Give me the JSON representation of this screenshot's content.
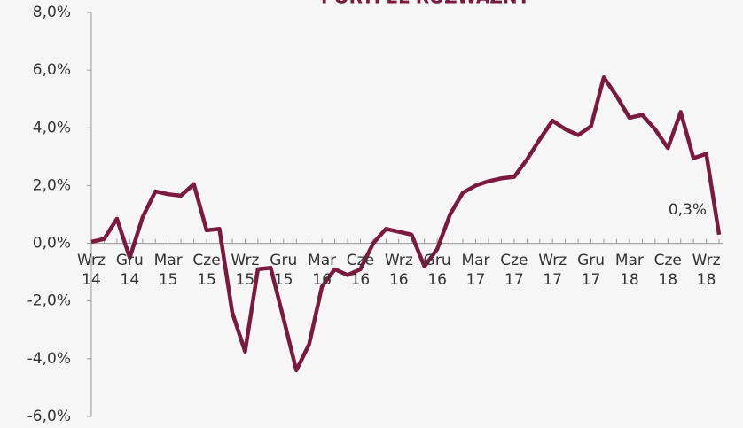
{
  "chart_data": {
    "type": "line",
    "title": "PORTFEL ROZWAŻNY",
    "categories": [
      "Wrz 14",
      null,
      null,
      "Gru 14",
      null,
      null,
      "Mar 15",
      null,
      null,
      "Cze 15",
      null,
      null,
      "Wrz 15",
      null,
      null,
      "Gru 15",
      null,
      null,
      "Mar 16",
      null,
      null,
      "Cze 16",
      null,
      null,
      "Wrz 16",
      null,
      null,
      "Gru 16",
      null,
      null,
      "Mar 17",
      null,
      null,
      "Cze 17",
      null,
      null,
      "Wrz 17",
      null,
      null,
      "Gru 17",
      null,
      null,
      "Mar 18",
      null,
      null,
      "Cze 18",
      null,
      null,
      "Wrz 18",
      null
    ],
    "series": [
      {
        "color": "#7b1a3f",
        "values": [
          0.05,
          0.15,
          0.85,
          -0.5,
          0.9,
          1.8,
          1.7,
          1.65,
          2.05,
          0.45,
          0.5,
          -2.4,
          -3.75,
          -0.9,
          -0.85,
          -2.6,
          -4.4,
          -3.5,
          -1.5,
          -0.9,
          -1.1,
          -0.9,
          0.0,
          0.5,
          0.4,
          0.3,
          -0.8,
          -0.2,
          1.0,
          1.75,
          2.0,
          2.15,
          2.25,
          2.3,
          2.9,
          3.6,
          4.25,
          3.95,
          3.75,
          4.05,
          5.75,
          5.1,
          4.35,
          4.45,
          3.95,
          3.3,
          4.55,
          2.95,
          3.1,
          0.3
        ],
        "value_labels": [
          null,
          null,
          null,
          null,
          null,
          null,
          null,
          null,
          null,
          null,
          null,
          null,
          null,
          null,
          null,
          null,
          null,
          null,
          null,
          null,
          null,
          null,
          null,
          null,
          null,
          null,
          null,
          null,
          null,
          null,
          null,
          null,
          null,
          null,
          null,
          null,
          null,
          null,
          null,
          null,
          null,
          null,
          null,
          null,
          null,
          null,
          null,
          null,
          null,
          "0,3%"
        ]
      }
    ],
    "ylim": [
      -6,
      8
    ],
    "yticks": [
      {
        "value": -6,
        "label": "-6,0%"
      },
      {
        "value": -4,
        "label": "-4,0%"
      },
      {
        "value": -2,
        "label": "-2,0%"
      },
      {
        "value": 0,
        "label": "0,0%"
      },
      {
        "value": 2,
        "label": "2,0%"
      },
      {
        "value": 4,
        "label": "4,0%"
      },
      {
        "value": 6,
        "label": "6,0%"
      },
      {
        "value": 8,
        "label": "8,0%"
      }
    ]
  }
}
